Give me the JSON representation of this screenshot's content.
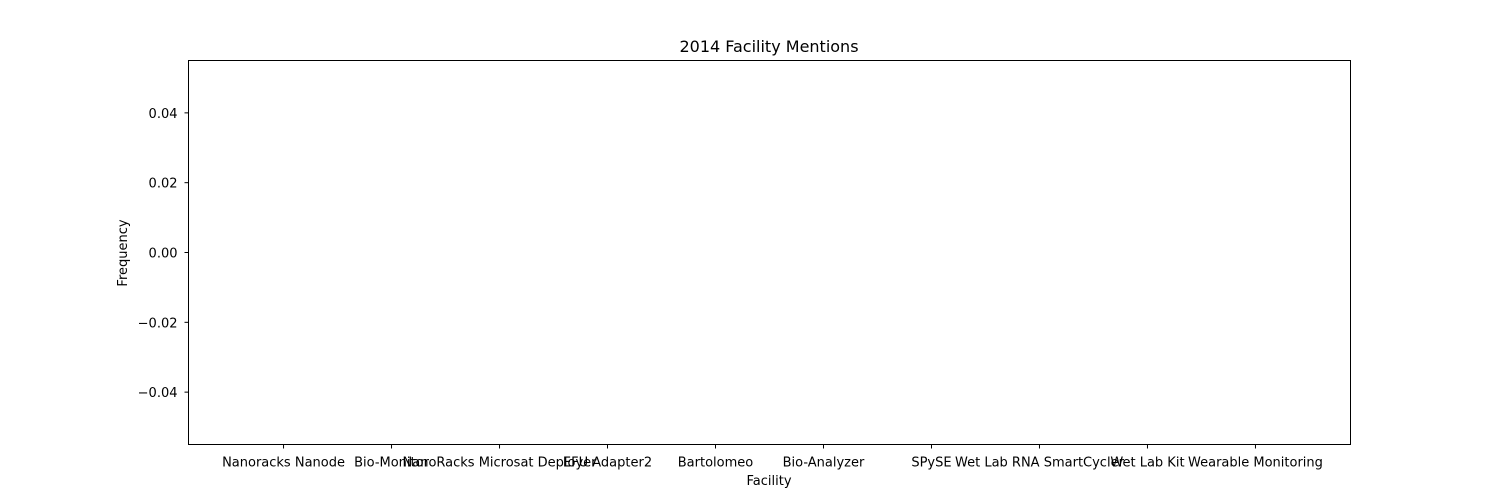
{
  "chart_data": {
    "type": "bar",
    "title": "2014 Facility Mentions",
    "xlabel": "Facility",
    "ylabel": "Frequency",
    "categories": [
      "Nanoracks Nanode",
      "Bio-Monitor",
      "NanoRacks Microsat Deployer",
      "EFU Adapter2",
      "Bartolomeo",
      "Bio-Analyzer",
      "SPySE",
      "Wet Lab RNA SmartCycler",
      "Wet Lab Kit",
      "Wearable Monitoring"
    ],
    "values": [
      0,
      0,
      0,
      0,
      0,
      0,
      0,
      0,
      0,
      0
    ],
    "ylim": [
      -0.055,
      0.055
    ],
    "yticks": [
      0.04,
      0.02,
      0.0,
      -0.02,
      -0.04
    ],
    "ytick_labels": [
      "0.04",
      "0.02",
      "0.00",
      "−0.02",
      "−0.04"
    ],
    "grid": false
  }
}
